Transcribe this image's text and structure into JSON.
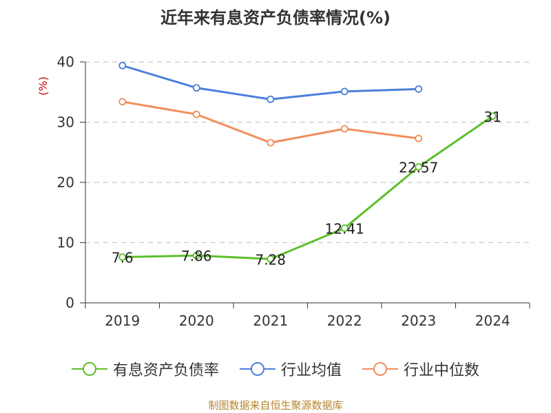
{
  "page_title": "近年来有息资产负债率情况(%)",
  "source_note": "制图数据来自恒生聚源数据库",
  "chart_data": {
    "type": "line",
    "title": "近年来有息资产负债率情况(%)",
    "ylabel": "(%)",
    "xlabel": "",
    "categories": [
      "2019",
      "2020",
      "2021",
      "2022",
      "2023",
      "2024"
    ],
    "ylim": [
      0,
      40
    ],
    "yticks": [
      0,
      10,
      20,
      30,
      40
    ],
    "grid": true,
    "legend_position": "bottom",
    "series": [
      {
        "name": "有息资产负债率",
        "color": "#5bbf2a",
        "labels": true,
        "values": [
          7.6,
          7.86,
          7.28,
          12.41,
          22.57,
          31
        ],
        "value_labels": [
          "7.6",
          "7.86",
          "7.28",
          "12.41",
          "22.57",
          "31"
        ]
      },
      {
        "name": "行业均值",
        "color": "#4a7fdb",
        "labels": false,
        "values": [
          39.4,
          35.7,
          33.8,
          35.1,
          35.5,
          null
        ]
      },
      {
        "name": "行业中位数",
        "color": "#f28e5b",
        "labels": false,
        "values": [
          33.4,
          31.3,
          26.6,
          28.9,
          27.3,
          null
        ]
      }
    ]
  }
}
